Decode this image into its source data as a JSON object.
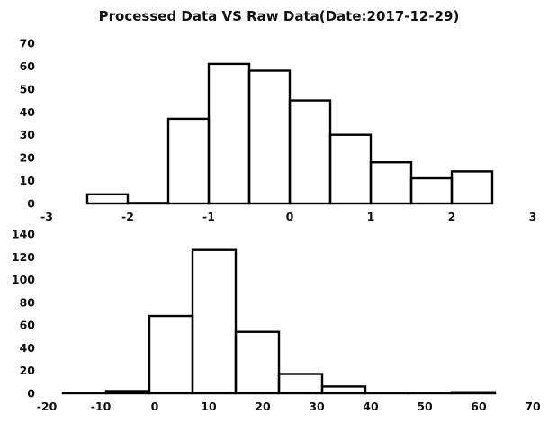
{
  "title": "Processed Data VS Raw Data(Date:2017-12-29)",
  "chart_data": [
    {
      "type": "bar",
      "name": "top-histogram",
      "bins": [
        {
          "x0": -2.5,
          "x1": -2.0,
          "value": 4
        },
        {
          "x0": -2.0,
          "x1": -1.5,
          "value": 0
        },
        {
          "x0": -1.5,
          "x1": -1.0,
          "value": 37
        },
        {
          "x0": -1.0,
          "x1": -0.5,
          "value": 61
        },
        {
          "x0": -0.5,
          "x1": 0.0,
          "value": 58
        },
        {
          "x0": 0.0,
          "x1": 0.5,
          "value": 45
        },
        {
          "x0": 0.5,
          "x1": 1.0,
          "value": 30
        },
        {
          "x0": 1.0,
          "x1": 1.5,
          "value": 18
        },
        {
          "x0": 1.5,
          "x1": 2.0,
          "value": 11
        },
        {
          "x0": 2.0,
          "x1": 2.5,
          "value": 14
        }
      ],
      "xlim": [
        -3,
        3
      ],
      "ylim": [
        0,
        70
      ],
      "xticks": [
        "-3",
        "-2",
        "-1",
        "0",
        "1",
        "2",
        "3"
      ],
      "yticks": [
        "0",
        "10",
        "20",
        "30",
        "40",
        "50",
        "60",
        "70"
      ],
      "grid": false
    },
    {
      "type": "bar",
      "name": "bottom-histogram",
      "bins": [
        {
          "x0": -17,
          "x1": -9,
          "value": 0
        },
        {
          "x0": -9,
          "x1": -1,
          "value": 2
        },
        {
          "x0": -1,
          "x1": 7,
          "value": 68
        },
        {
          "x0": 7,
          "x1": 15,
          "value": 126
        },
        {
          "x0": 15,
          "x1": 23,
          "value": 54
        },
        {
          "x0": 23,
          "x1": 31,
          "value": 17
        },
        {
          "x0": 31,
          "x1": 39,
          "value": 6
        },
        {
          "x0": 39,
          "x1": 47,
          "value": 0
        },
        {
          "x0": 47,
          "x1": 55,
          "value": 0
        },
        {
          "x0": 55,
          "x1": 63,
          "value": 1
        }
      ],
      "xlim": [
        -20,
        70
      ],
      "ylim": [
        0,
        140
      ],
      "xticks": [
        "-20",
        "-10",
        "0",
        "10",
        "20",
        "30",
        "40",
        "50",
        "60",
        "70"
      ],
      "yticks": [
        "0",
        "20",
        "40",
        "60",
        "80",
        "100",
        "120",
        "140"
      ],
      "grid": false
    }
  ]
}
